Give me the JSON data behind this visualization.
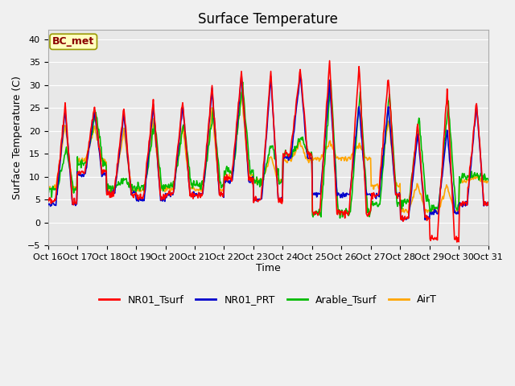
{
  "title": "Surface Temperature",
  "xlabel": "Time",
  "ylabel": "Surface Temperature (C)",
  "ylim": [
    -5,
    42
  ],
  "yticks": [
    -5,
    0,
    5,
    10,
    15,
    20,
    25,
    30,
    35,
    40
  ],
  "annotation_text": "BC_met",
  "annotation_color": "#8B0000",
  "annotation_bg": "#FFFFC0",
  "fig_bg": "#F0F0F0",
  "plot_bg": "#E8E8E8",
  "series_colors": {
    "NR01_Tsurf": "#FF0000",
    "NR01_PRT": "#0000CC",
    "Arable_Tsurf": "#00BB00",
    "AirT": "#FFA500"
  },
  "x_tick_labels": [
    "Oct 16",
    "Oct 17",
    "Oct 18",
    "Oct 19",
    "Oct 20",
    "Oct 21",
    "Oct 22",
    "Oct 23",
    "Oct 24",
    "Oct 25",
    "Oct 26",
    "Oct 27",
    "Oct 28",
    "Oct 29",
    "Oct 30",
    "Oct 31"
  ],
  "line_width": 1.2,
  "title_fontsize": 12,
  "axis_fontsize": 9,
  "tick_fontsize": 8,
  "legend_fontsize": 9
}
